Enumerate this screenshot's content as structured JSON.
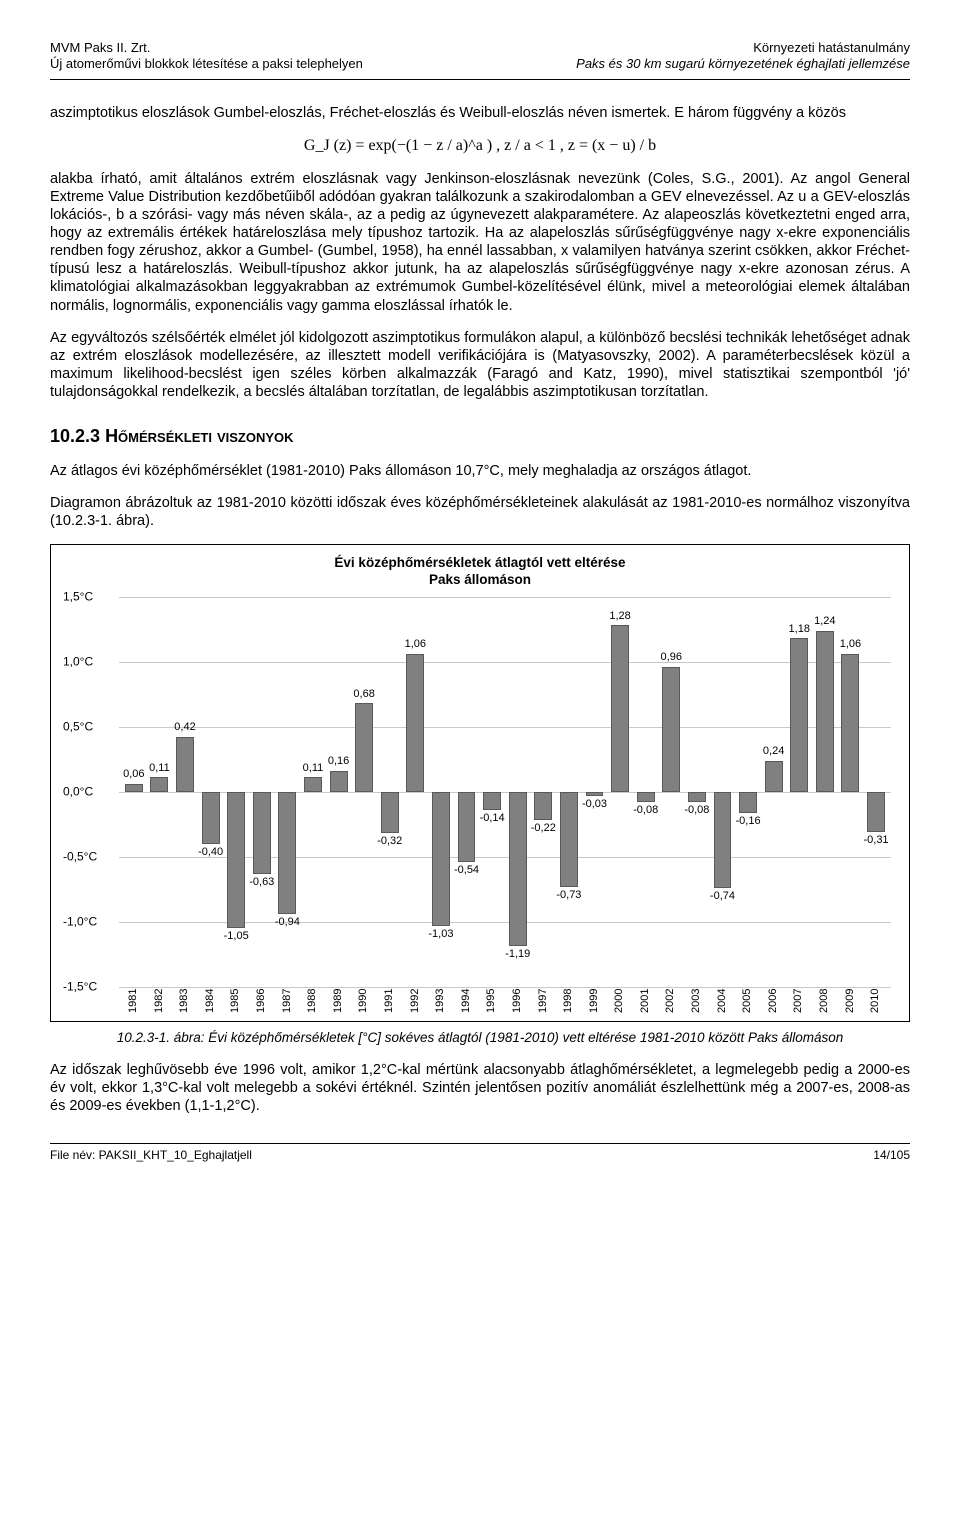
{
  "header": {
    "left1": "MVM Paks II. Zrt.",
    "left2": "Új atomerőművi blokkok létesítése a paksi telephelyen",
    "right1": "Környezeti hatástanulmány",
    "right2": "Paks és 30 km sugarú környezetének éghajlati jellemzése"
  },
  "para1": "aszimptotikus eloszlások Gumbel-eloszlás, Fréchet-eloszlás és Weibull-eloszlás néven ismertek. E három függvény a közös",
  "formula": "G_J (z) = exp(−(1 − z / a)^a ) ,   z / a < 1 ,   z = (x − u) / b",
  "para2": "alakba írható, amit általános extrém eloszlásnak vagy Jenkinson-eloszlásnak nevezünk (Coles, S.G., 2001). Az angol General Extreme Value Distribution kezdőbetűiből adódóan gyakran találkozunk a szakirodalomban a GEV elnevezéssel. Az u a GEV-eloszlás lokációs-, b a szórási- vagy más néven skála-, az a pedig az úgynevezett alakparamétere. Az alapeoszlás következtetni enged arra, hogy az extremális értékek határeloszlása mely típushoz tartozik. Ha az alapeloszlás sűrűségfüggvénye nagy x-ekre exponenciális rendben fogy zérushoz, akkor a Gumbel- (Gumbel, 1958), ha ennél lassabban, x valamilyen hatványa szerint csökken, akkor Fréchet-típusú lesz a határeloszlás. Weibull-típushoz akkor jutunk, ha az alapeloszlás sűrűségfüggvénye nagy x-ekre azonosan zérus. A klimatológiai alkalmazásokban leggyakrabban az extrémumok Gumbel-közelítésével élünk, mivel a meteorológiai elemek általában normális, lognormális, exponenciális vagy gamma eloszlással írhatók le.",
  "para3": "Az egyváltozós szélsőérték elmélet jól kidolgozott aszimptotikus formulákon alapul, a különböző becslési technikák lehetőséget adnak az extrém eloszlások modellezésére, az illesztett modell verifikációjára is (Matyasovszky, 2002). A paraméterbecslések közül a maximum likelihood-becslést igen széles körben alkalmazzák (Faragó and Katz, 1990), mivel statisztikai szempontból 'jó' tulajdonságokkal rendelkezik, a becslés általában torzítatlan, de legalábbis aszimptotikusan torzítatlan.",
  "section": {
    "num": "10.2.3",
    "title": "Hőmérsékleti viszonyok"
  },
  "para4": "Az átlagos évi középhőmérséklet (1981-2010) Paks állomáson 10,7°C, mely meghaladja az országos átlagot.",
  "para5": "Diagramon ábrázoltuk az 1981-2010 közötti időszak éves középhőmérsékleteinek alakulását az 1981-2010-es normálhoz viszonyítva (10.2.3-1. ábra).",
  "chart": {
    "title_line1": "Évi középhőmérsékletek átlagtól vett eltérése",
    "title_line2": "Paks állomáson",
    "type": "bar",
    "ylim": [
      -1.5,
      1.5
    ],
    "yticks": [
      -1.5,
      -1.0,
      -0.5,
      0.0,
      0.5,
      1.0,
      1.5
    ],
    "yticklabels": [
      "-1,5°C",
      "-1,0°C",
      "-0,5°C",
      "0,0°C",
      "0,5°C",
      "1,0°C",
      "1,5°C"
    ],
    "years": [
      "1981",
      "1982",
      "1983",
      "1984",
      "1985",
      "1986",
      "1987",
      "1988",
      "1989",
      "1990",
      "1991",
      "1992",
      "1993",
      "1994",
      "1995",
      "1996",
      "1997",
      "1998",
      "1999",
      "2000",
      "2001",
      "2002",
      "2003",
      "2004",
      "2005",
      "2006",
      "2007",
      "2008",
      "2009",
      "2010"
    ],
    "values": [
      0.06,
      0.11,
      0.42,
      -0.4,
      -1.05,
      -0.63,
      -0.94,
      0.11,
      0.16,
      0.68,
      -0.32,
      1.06,
      -1.03,
      -0.54,
      -0.14,
      -1.19,
      -0.22,
      -0.73,
      -0.03,
      1.28,
      -0.08,
      0.96,
      -0.08,
      -0.74,
      -0.16,
      0.24,
      1.18,
      1.24,
      1.06,
      -0.31
    ],
    "labels": [
      "0,06",
      "0,11",
      "0,42",
      "-0,40",
      "-1,05",
      "-0,63",
      "-0,94",
      "0,11",
      "0,16",
      "0,68",
      "-0,32",
      "1,06",
      "-1,03",
      "-0,54",
      "-0,14",
      "-1,19",
      "-0,22",
      "-0,73",
      "-0,03",
      "1,28",
      "-0,08",
      "0,96",
      "-0,08",
      "-0,74",
      "-0,16",
      "0,24",
      "1,18",
      "1,24",
      "1,06",
      "-0,31"
    ],
    "bar_color": "#808080",
    "bar_border": "#595959",
    "grid_color": "#c9c9c9",
    "background": "#ffffff",
    "font_size_title": 13.5,
    "font_size_axis": 12,
    "font_size_barlabel": 11
  },
  "figcaption": "10.2.3-1. ábra: Évi középhőmérsékletek [°C] sokéves átlagtól (1981-2010) vett eltérése 1981-2010 között Paks állomáson",
  "para6": "Az időszak leghűvösebb éve 1996 volt, amikor 1,2°C-kal mértünk alacsonyabb átlaghőmérsékletet, a legmelegebb pedig a 2000-es év volt, ekkor 1,3°C-kal volt melegebb a sokévi értéknél. Szintén jelentősen pozitív anomáliát észlelhettünk még a 2007-es, 2008-as és 2009-es években (1,1-1,2°C).",
  "footer": {
    "left": "File név: PAKSII_KHT_10_Eghajlatjell",
    "right": "14/105"
  }
}
